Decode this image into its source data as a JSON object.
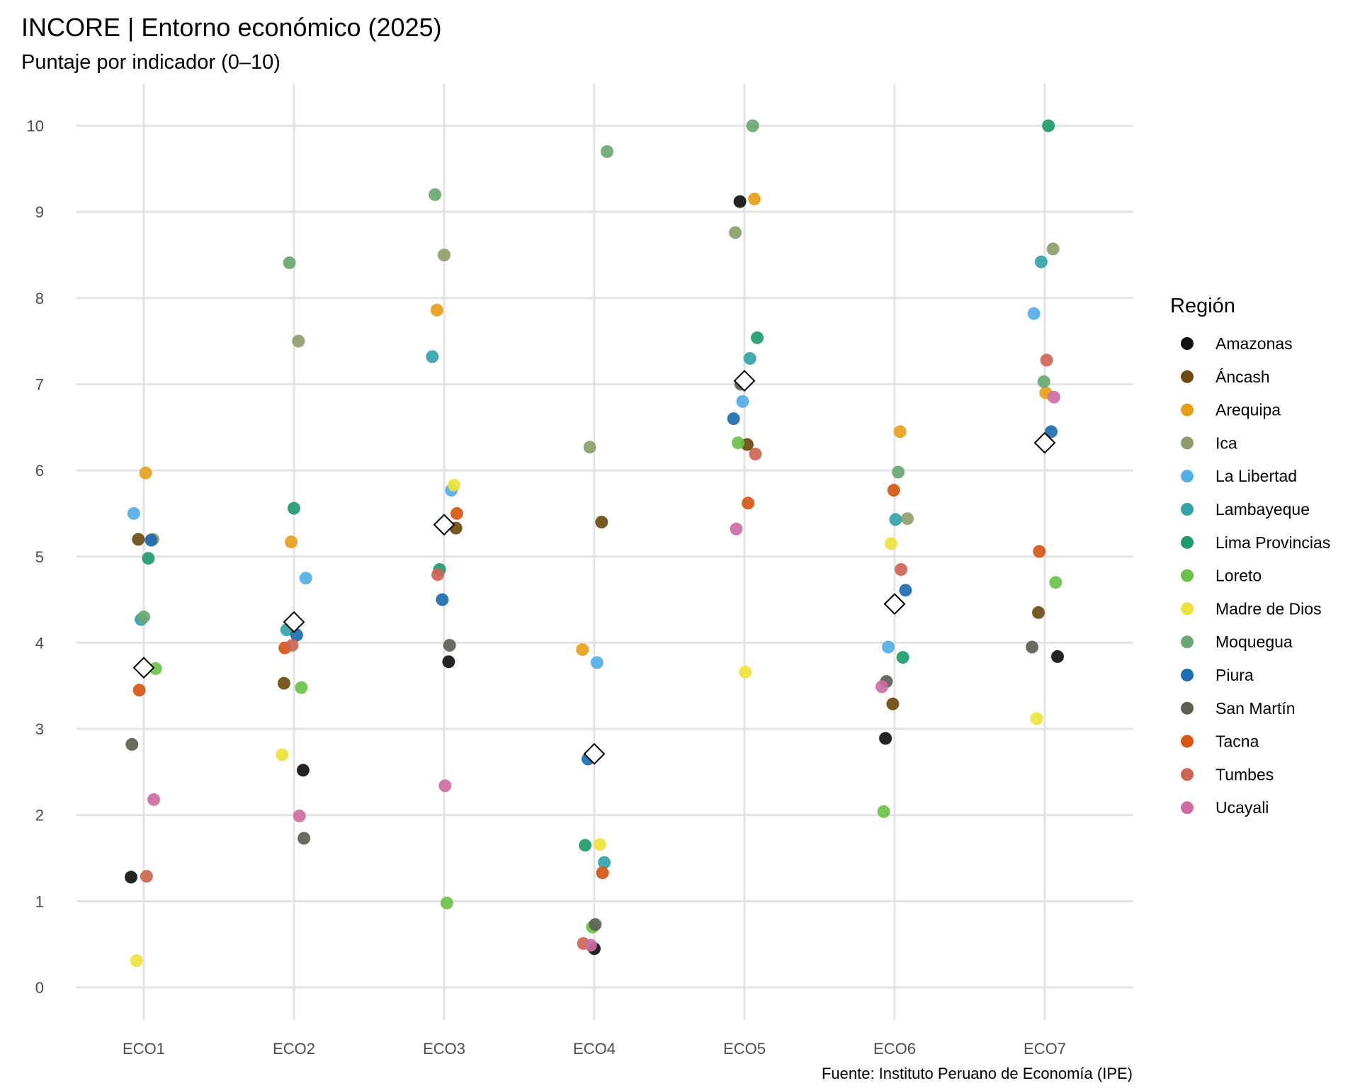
{
  "chart_data": {
    "type": "scatter",
    "title": "INCORE | Entorno económico (2025)",
    "subtitle": "Puntaje por indicador (0–10)",
    "caption": "Fuente: Instituto Peruano de Economía (IPE)",
    "xlabel": "",
    "ylabel": "",
    "categories": [
      "ECO1",
      "ECO2",
      "ECO3",
      "ECO4",
      "ECO5",
      "ECO6",
      "ECO7"
    ],
    "ylim": [
      -0.5,
      10.5
    ],
    "yticks": [
      "0",
      "1",
      "2",
      "3",
      "4",
      "5",
      "6",
      "7",
      "8",
      "9",
      "10"
    ],
    "grid": true,
    "legend": {
      "title": "Región",
      "position": "right"
    },
    "series": [
      {
        "name": "Amazonas",
        "color": "#111111",
        "values": [
          1.28,
          2.52,
          3.78,
          0.45,
          9.12,
          2.89,
          3.84
        ]
      },
      {
        "name": "Áncash",
        "color": "#6b4c10",
        "values": [
          5.2,
          3.53,
          5.33,
          5.4,
          6.3,
          3.29,
          4.35
        ]
      },
      {
        "name": "Arequipa",
        "color": "#e69f1c",
        "values": [
          5.97,
          5.17,
          7.86,
          3.92,
          9.15,
          6.45,
          6.9
        ]
      },
      {
        "name": "Ica",
        "color": "#8e9e6a",
        "values": [
          5.2,
          7.5,
          8.5,
          6.27,
          8.76,
          5.44,
          8.57
        ]
      },
      {
        "name": "La Libertad",
        "color": "#55aee6",
        "values": [
          5.5,
          4.75,
          5.77,
          3.77,
          6.8,
          3.95,
          7.82
        ]
      },
      {
        "name": "Lambayeque",
        "color": "#35a3a8",
        "values": [
          4.27,
          4.15,
          7.32,
          1.45,
          7.3,
          5.43,
          8.42
        ]
      },
      {
        "name": "Lima Provincias",
        "color": "#219a6d",
        "values": [
          4.98,
          5.56,
          4.85,
          1.65,
          7.54,
          3.83,
          10.0
        ]
      },
      {
        "name": "Loreto",
        "color": "#6cc04a",
        "values": [
          3.7,
          3.48,
          0.98,
          0.7,
          6.32,
          2.04,
          4.7
        ]
      },
      {
        "name": "Madre de Dios",
        "color": "#ece33c",
        "values": [
          0.31,
          2.7,
          5.83,
          1.66,
          3.66,
          5.15,
          3.12
        ]
      },
      {
        "name": "Moquegua",
        "color": "#6ba772",
        "values": [
          4.3,
          8.41,
          9.2,
          9.7,
          10.0,
          5.98,
          7.03
        ]
      },
      {
        "name": "Piura",
        "color": "#1f6cb0",
        "values": [
          5.19,
          4.09,
          4.5,
          2.65,
          6.6,
          4.61,
          6.45
        ]
      },
      {
        "name": "San Martín",
        "color": "#5e5e54",
        "values": [
          2.82,
          1.73,
          3.97,
          0.73,
          7.0,
          3.55,
          3.95
        ]
      },
      {
        "name": "Tacna",
        "color": "#d45713",
        "values": [
          3.45,
          3.94,
          5.5,
          1.33,
          5.62,
          5.77,
          5.06
        ]
      },
      {
        "name": "Tumbes",
        "color": "#cc6555",
        "values": [
          1.29,
          3.97,
          4.79,
          0.51,
          6.19,
          4.85,
          7.28
        ]
      },
      {
        "name": "Ucayali",
        "color": "#cc6ca3",
        "values": [
          2.18,
          1.99,
          2.34,
          0.49,
          5.32,
          3.49,
          6.85
        ]
      }
    ],
    "mean_marker": {
      "shape": "diamond",
      "values": [
        3.71,
        4.24,
        5.37,
        2.71,
        7.04,
        4.45,
        6.32
      ]
    }
  }
}
